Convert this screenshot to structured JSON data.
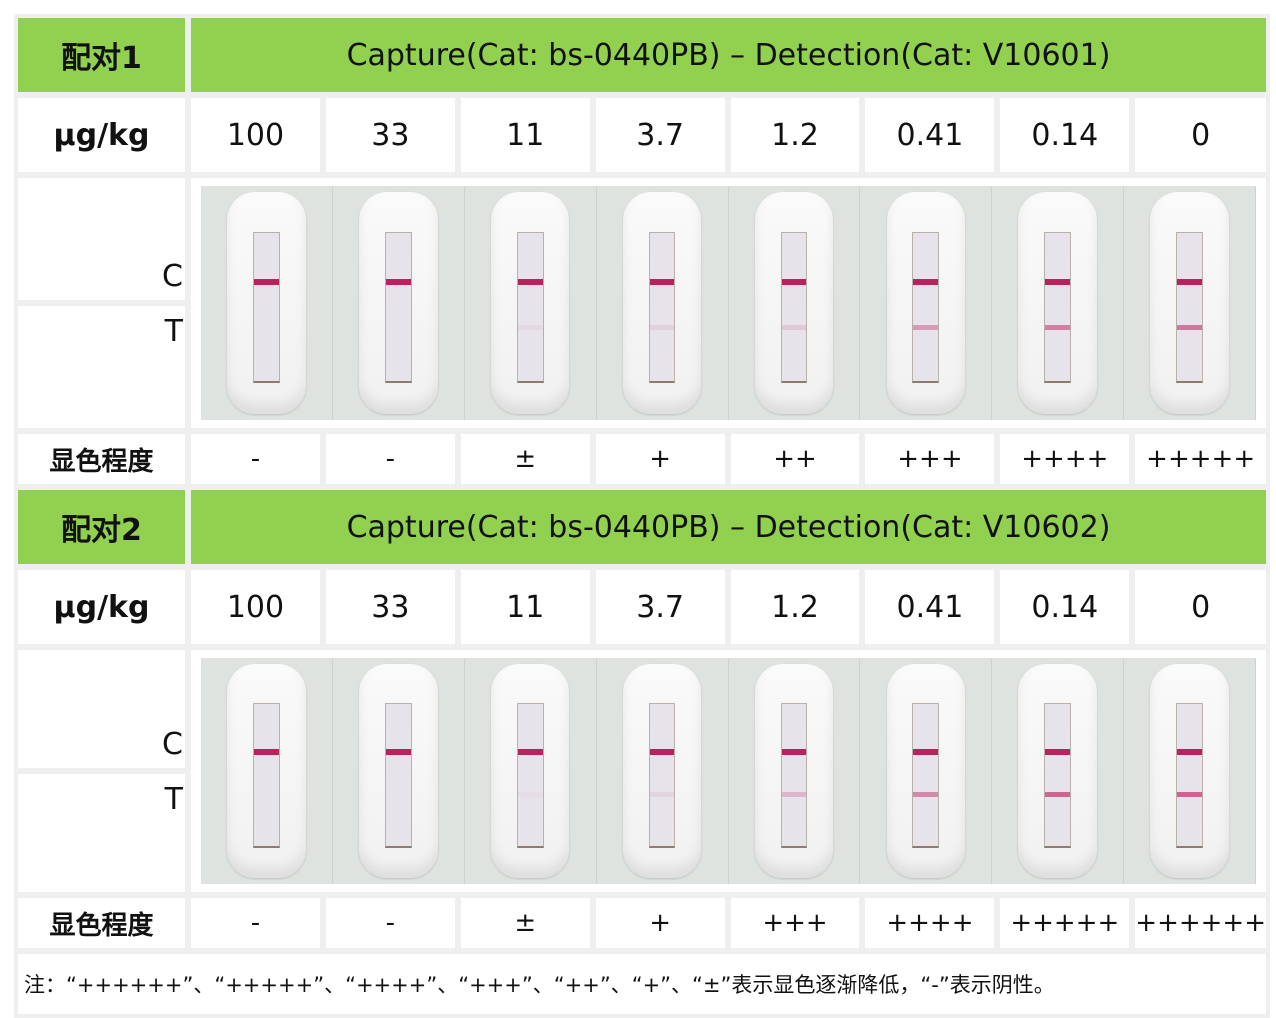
{
  "unit_label": "µg/kg",
  "degree_label": "显色程度",
  "c_label": "C",
  "t_label": "T",
  "concentrations": [
    "100",
    "33",
    "11",
    "3.7",
    "1.2",
    "0.41",
    "0.14",
    "0"
  ],
  "pairs": [
    {
      "name": "配对1",
      "title": "Capture(Cat: bs-0440PB) – Detection(Cat: V10601)",
      "degrees": [
        "-",
        "-",
        "±",
        "+",
        "++",
        "+++",
        "++++",
        "+++++"
      ],
      "t_line_intensity": [
        0,
        0,
        0.05,
        0.1,
        0.15,
        0.4,
        0.55,
        0.6
      ]
    },
    {
      "name": "配对2",
      "title": "Capture(Cat: bs-0440PB) – Detection(Cat: V10602)",
      "degrees": [
        "-",
        "-",
        "±",
        "+",
        "+++",
        "++++",
        "+++++",
        "++++++"
      ],
      "t_line_intensity": [
        0,
        0,
        0.03,
        0.08,
        0.25,
        0.5,
        0.7,
        0.7
      ]
    }
  ],
  "note": "注：“++++++”、“+++++”、“++++”、“+++”、“++”、“+”、“±”表示显色逐渐降低，“-”表示阴性。",
  "colors": {
    "header_green": "#92d050",
    "line": "#b8235e"
  }
}
